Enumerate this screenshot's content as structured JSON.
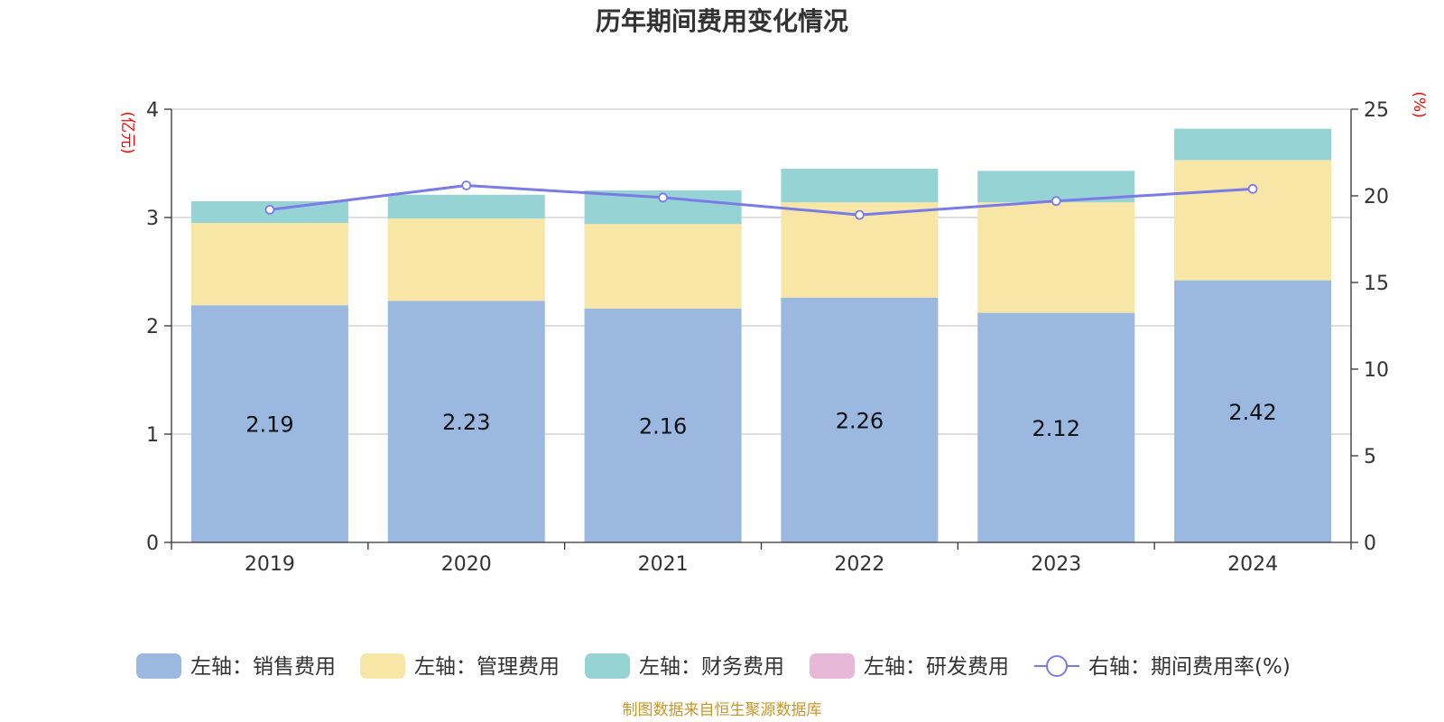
{
  "title": "历年期间费用变化情况",
  "source": "制图数据来自恒生聚源数据库",
  "colors": {
    "sales": "#9bb8e1",
    "admin": "#f7e6a6",
    "finance": "#96d3d4",
    "rd": "#e8b8d8",
    "rate_line": "#7b7be8",
    "axis_unit": "#ff0000",
    "source_text": "#c8962a"
  },
  "chart_data": {
    "type": "bar",
    "stacked": true,
    "categories": [
      "2019",
      "2020",
      "2021",
      "2022",
      "2023",
      "2024"
    ],
    "left_axis": {
      "unit": "(亿元)",
      "ylim": [
        0,
        4
      ],
      "ticks": [
        "0",
        "1",
        "2",
        "3",
        "4"
      ]
    },
    "right_axis": {
      "unit": "(%)",
      "ylim": [
        0,
        25
      ],
      "ticks": [
        "0",
        "5",
        "10",
        "15",
        "20",
        "25"
      ]
    },
    "series": [
      {
        "name": "左轴：销售费用",
        "key": "sales",
        "axis": "left",
        "values": [
          2.19,
          2.23,
          2.16,
          2.26,
          2.12,
          2.42
        ],
        "labels": [
          "2.19",
          "2.23",
          "2.16",
          "2.26",
          "2.12",
          "2.42"
        ]
      },
      {
        "name": "左轴：管理费用",
        "key": "admin",
        "axis": "left",
        "values": [
          0.76,
          0.76,
          0.78,
          0.88,
          1.02,
          1.11
        ]
      },
      {
        "name": "左轴：财务费用",
        "key": "finance",
        "axis": "left",
        "values": [
          0.2,
          0.22,
          0.31,
          0.31,
          0.29,
          0.29
        ]
      },
      {
        "name": "左轴：研发费用",
        "key": "rd",
        "axis": "left",
        "values": [
          0,
          0,
          0,
          0,
          0,
          0
        ]
      },
      {
        "name": "右轴：期间费用率(%)",
        "key": "rate_line",
        "axis": "right",
        "type": "line",
        "values": [
          19.2,
          20.6,
          19.9,
          18.9,
          19.7,
          20.4
        ]
      }
    ],
    "grid": true,
    "legend_position": "bottom"
  }
}
